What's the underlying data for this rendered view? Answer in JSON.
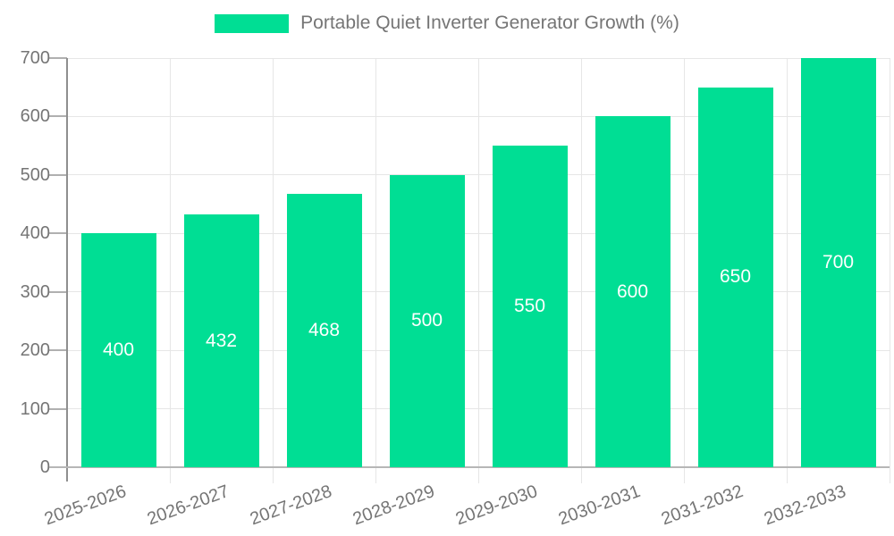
{
  "legend": {
    "label": "Portable Quiet Inverter Generator Growth (%)"
  },
  "colors": {
    "bar": "#00de94",
    "grid": "#e6e6e6",
    "axis_y": "#8f8f8f",
    "axis_x": "#b6b6b6",
    "tick": "#b0b0b0",
    "text": "#757575",
    "value_label": "#ffffff"
  },
  "chart_data": {
    "type": "bar",
    "title": "Portable Quiet Inverter Generator Growth (%)",
    "categories": [
      "2025-2026",
      "2026-2027",
      "2027-2028",
      "2028-2029",
      "2029-2030",
      "2030-2031",
      "2031-2032",
      "2032-2033"
    ],
    "values": [
      400,
      432,
      468,
      500,
      550,
      600,
      650,
      700
    ],
    "xlabel": "",
    "ylabel": "",
    "ylim": [
      0,
      700
    ],
    "yticks": [
      0,
      100,
      200,
      300,
      400,
      500,
      600,
      700
    ],
    "grid": true,
    "legend_position": "top",
    "value_label_position": "inside-center",
    "bar_color": "#00de94"
  }
}
